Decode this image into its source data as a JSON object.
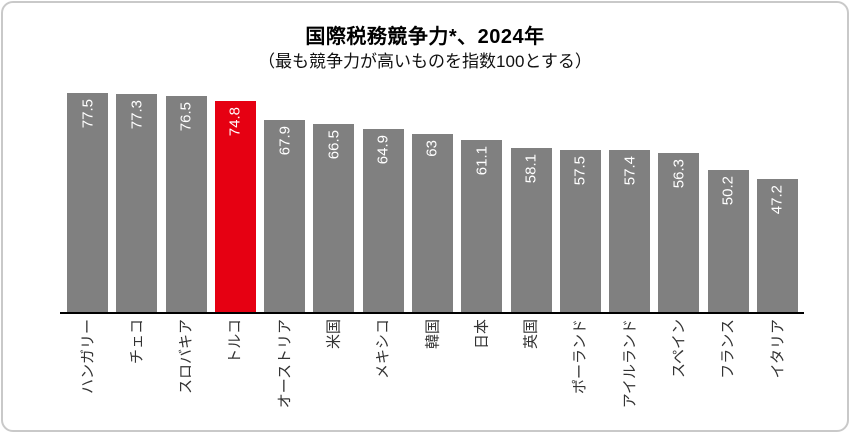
{
  "chart_data": {
    "type": "bar",
    "title": "国際税務競争力*、2024年",
    "subtitle": "（最も競争力が高いものを指数100とする）",
    "categories": [
      "ハンガリー",
      "チェコ",
      "スロバキア",
      "トルコ",
      "オーストリア",
      "米国",
      "メキシコ",
      "韓国",
      "日本",
      "英国",
      "ポーランド",
      "アイルランド",
      "スペイン",
      "フランス",
      "イタリア"
    ],
    "values": [
      77.5,
      77.3,
      76.5,
      74.8,
      67.9,
      66.5,
      64.9,
      63,
      61.1,
      58.1,
      57.5,
      57.4,
      56.3,
      50.2,
      47.2
    ],
    "value_labels": [
      "77.5",
      "77.3",
      "76.5",
      "74.8",
      "67.9",
      "66.5",
      "64.9",
      "63",
      "61.1",
      "58.1",
      "57.5",
      "57.4",
      "56.3",
      "50.2",
      "47.2"
    ],
    "highlight_index": 3,
    "highlight_category": "トルコ",
    "ylim": [
      0,
      80
    ],
    "grid": false,
    "legend": "none",
    "value_label_position": "inside-top-rotated",
    "category_label_rotation": -90,
    "colors": {
      "bar": "#808080",
      "highlight": "#e60012",
      "value_text": "#ffffff",
      "category_text": "#333333",
      "axis": "#000000",
      "card_border": "#c9c9c9",
      "background": "#ffffff"
    }
  }
}
